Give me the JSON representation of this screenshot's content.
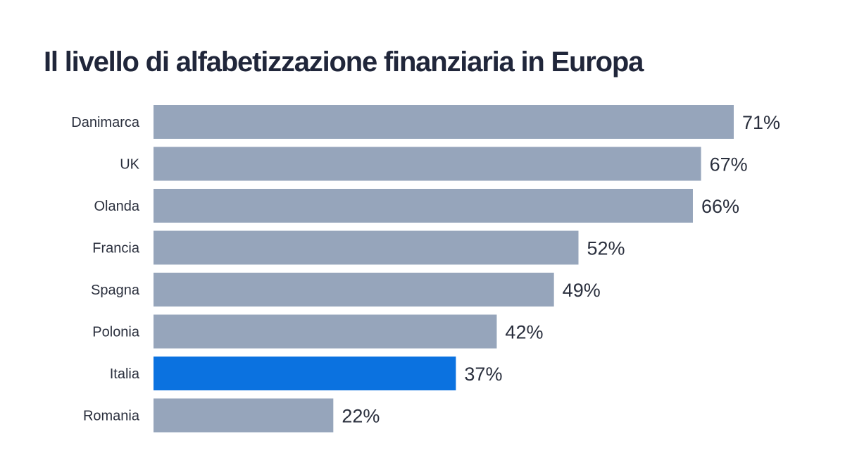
{
  "chart_data": {
    "type": "bar",
    "orientation": "horizontal",
    "title": "Il livello di alfabetizzazione finanziaria in Europa",
    "categories": [
      "Danimarca",
      "UK",
      "Olanda",
      "Francia",
      "Spagna",
      "Polonia",
      "Italia",
      "Romania"
    ],
    "values": [
      71,
      67,
      66,
      52,
      49,
      42,
      37,
      22
    ],
    "value_labels": [
      "71%",
      "67%",
      "66%",
      "52%",
      "49%",
      "42%",
      "37%",
      "22%"
    ],
    "unit": "%",
    "xlim": [
      0,
      71
    ],
    "grid": false,
    "legend": "none",
    "colors": {
      "bar": "#96a5bb",
      "highlight": "#0b72e0",
      "text": "#2a2f3d",
      "title": "#20263a"
    },
    "highlight_category": "Italia"
  }
}
